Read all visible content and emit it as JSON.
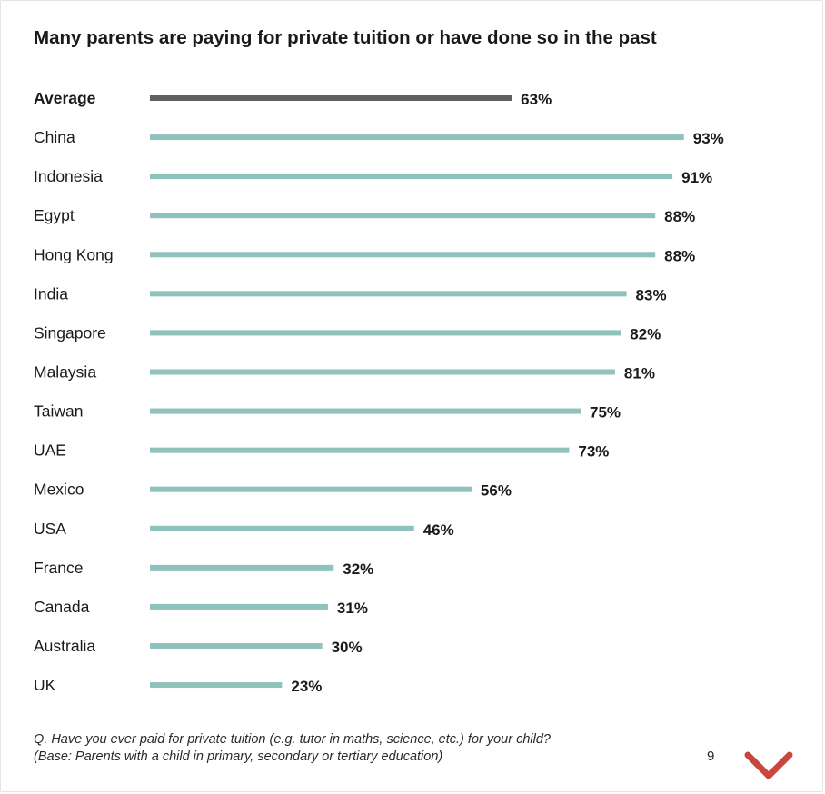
{
  "title": "Many parents are paying for private tuition or have done so in the past",
  "footnote": {
    "line1": "Q. Have you ever paid for private tuition (e.g. tutor in maths, science, etc.) for your child?",
    "line2": "(Base: Parents with a child in primary, secondary or tertiary education)"
  },
  "page_number": "9",
  "icons": {
    "next": "chevron-down-icon"
  },
  "colors": {
    "average_bar": "#5f6062",
    "country_bar": "#8fc1bd",
    "chevron": "#c9463d"
  },
  "chart_data": {
    "type": "bar",
    "orientation": "horizontal",
    "unit": "%",
    "xlim": [
      0,
      100
    ],
    "grid": false,
    "legend": "none",
    "categories": [
      "Average",
      "China",
      "Indonesia",
      "Egypt",
      "Hong Kong",
      "India",
      "Singapore",
      "Malaysia",
      "Taiwan",
      "UAE",
      "Mexico",
      "USA",
      "France",
      "Canada",
      "Australia",
      "UK"
    ],
    "values": [
      63,
      93,
      91,
      88,
      88,
      83,
      82,
      81,
      75,
      73,
      56,
      46,
      32,
      31,
      30,
      23
    ],
    "value_labels": [
      "63%",
      "93%",
      "91%",
      "88%",
      "88%",
      "83%",
      "82%",
      "81%",
      "75%",
      "73%",
      "56%",
      "46%",
      "32%",
      "31%",
      "30%",
      "23%"
    ],
    "highlight": "Average"
  }
}
